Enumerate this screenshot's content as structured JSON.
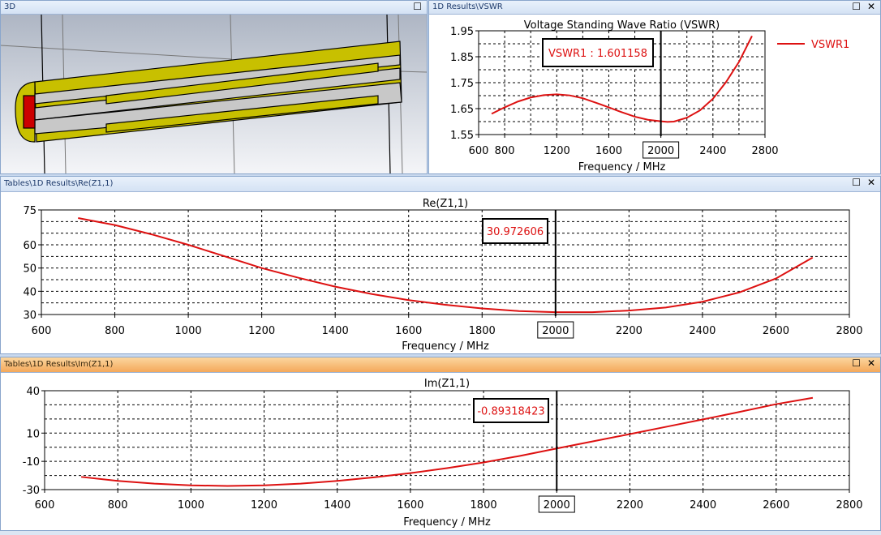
{
  "panels": {
    "3d": {
      "title": "3D"
    },
    "vswr": {
      "title": "1D Results\\VSWR"
    },
    "re": {
      "title": "Tables\\1D Results\\Re(Z1,1)"
    },
    "im": {
      "title": "Tables\\1D Results\\Im(Z1,1)"
    }
  },
  "window_buttons": {
    "maximize": "☐",
    "close": "✕"
  },
  "colors": {
    "curve": "#dd1111",
    "marker_text": "#dd1111",
    "active_title": "#f4a85a",
    "yellow": "#c8c000",
    "red_port": "#cc0000",
    "gray": "#c8c8c8"
  },
  "chart_data": [
    {
      "id": "vswr",
      "type": "line",
      "title": "Voltage Standing Wave Ratio (VSWR)",
      "xlabel": "Frequency / MHz",
      "ylabel": "",
      "xlim": [
        600,
        2800
      ],
      "ylim": [
        1.55,
        1.95
      ],
      "xticks": [
        "600",
        "800",
        "1200",
        "1600",
        "2000",
        "2400",
        "2800"
      ],
      "xtick_values": [
        600,
        800,
        1200,
        1600,
        2000,
        2400,
        2800
      ],
      "xgrid_step": 200,
      "yticks": [
        "1.55",
        "1.65",
        "1.75",
        "1.85",
        "1.95"
      ],
      "ytick_values": [
        1.55,
        1.65,
        1.75,
        1.85,
        1.95
      ],
      "ygrid_step": 0.05,
      "grid": true,
      "legend": {
        "position": "right",
        "entries": [
          "VSWR1"
        ]
      },
      "cursor_x": 2000,
      "cursor_label": "2000",
      "marker_text": "VSWR1 : 1.601158",
      "series": [
        {
          "name": "VSWR1",
          "x": [
            700,
            800,
            900,
            1000,
            1100,
            1200,
            1300,
            1400,
            1500,
            1600,
            1700,
            1800,
            1900,
            2000,
            2050,
            2100,
            2200,
            2300,
            2400,
            2500,
            2600,
            2700
          ],
          "y": [
            1.63,
            1.655,
            1.677,
            1.693,
            1.702,
            1.705,
            1.701,
            1.69,
            1.673,
            1.655,
            1.636,
            1.619,
            1.607,
            1.601,
            1.599,
            1.6,
            1.615,
            1.643,
            1.688,
            1.752,
            1.83,
            1.93
          ]
        }
      ]
    },
    {
      "id": "re",
      "type": "line",
      "title": "Re(Z1,1)",
      "xlabel": "Frequency / MHz",
      "ylabel": "",
      "xlim": [
        600,
        2800
      ],
      "ylim": [
        30,
        75
      ],
      "xticks": [
        "600",
        "800",
        "1000",
        "1200",
        "1400",
        "1600",
        "1800",
        "2000",
        "2200",
        "2400",
        "2600",
        "2800"
      ],
      "xtick_values": [
        600,
        800,
        1000,
        1200,
        1400,
        1600,
        1800,
        2000,
        2200,
        2400,
        2600,
        2800
      ],
      "xgrid_step": 200,
      "yticks": [
        "30",
        "40",
        "50",
        "60",
        "75"
      ],
      "ytick_values": [
        30,
        40,
        50,
        60,
        75
      ],
      "ygrid_step": 5,
      "grid": true,
      "cursor_x": 2000,
      "cursor_label": "2000",
      "marker_text": "30.972606",
      "series": [
        {
          "name": "Re(Z1,1)",
          "x": [
            700,
            800,
            900,
            1000,
            1100,
            1200,
            1300,
            1400,
            1500,
            1600,
            1700,
            1800,
            1900,
            2000,
            2100,
            2200,
            2300,
            2400,
            2500,
            2600,
            2700
          ],
          "y": [
            71.5,
            68.5,
            64.5,
            60,
            55,
            50,
            45.8,
            42,
            38.8,
            36.2,
            34.2,
            32.6,
            31.5,
            31.0,
            31.0,
            31.7,
            33.0,
            35.5,
            39.5,
            45.5,
            54.5
          ]
        }
      ]
    },
    {
      "id": "im",
      "type": "line",
      "title": "Im(Z1,1)",
      "xlabel": "Frequency / MHz",
      "ylabel": "",
      "xlim": [
        600,
        2800
      ],
      "ylim": [
        -30,
        40
      ],
      "xticks": [
        "600",
        "800",
        "1000",
        "1200",
        "1400",
        "1600",
        "1800",
        "2000",
        "2200",
        "2400",
        "2600",
        "2800"
      ],
      "xtick_values": [
        600,
        800,
        1000,
        1200,
        1400,
        1600,
        1800,
        2000,
        2200,
        2400,
        2600,
        2800
      ],
      "xgrid_step": 200,
      "yticks": [
        "-30",
        "-10",
        "10",
        "40"
      ],
      "ytick_values": [
        -30,
        -10,
        10,
        40
      ],
      "ygrid_step": 10,
      "grid": true,
      "cursor_x": 2000,
      "cursor_label": "2000",
      "marker_text": "-0.89318423",
      "series": [
        {
          "name": "Im(Z1,1)",
          "x": [
            700,
            800,
            900,
            1000,
            1100,
            1200,
            1300,
            1400,
            1500,
            1600,
            1700,
            1800,
            1900,
            2000,
            2100,
            2200,
            2300,
            2400,
            2500,
            2600,
            2700
          ],
          "y": [
            -21,
            -23.8,
            -25.8,
            -27,
            -27.4,
            -27,
            -25.8,
            -23.8,
            -21.3,
            -18.3,
            -14.8,
            -10.8,
            -6.1,
            -0.9,
            4.2,
            9.3,
            14.5,
            19.7,
            25,
            30.5,
            35
          ]
        }
      ]
    }
  ]
}
